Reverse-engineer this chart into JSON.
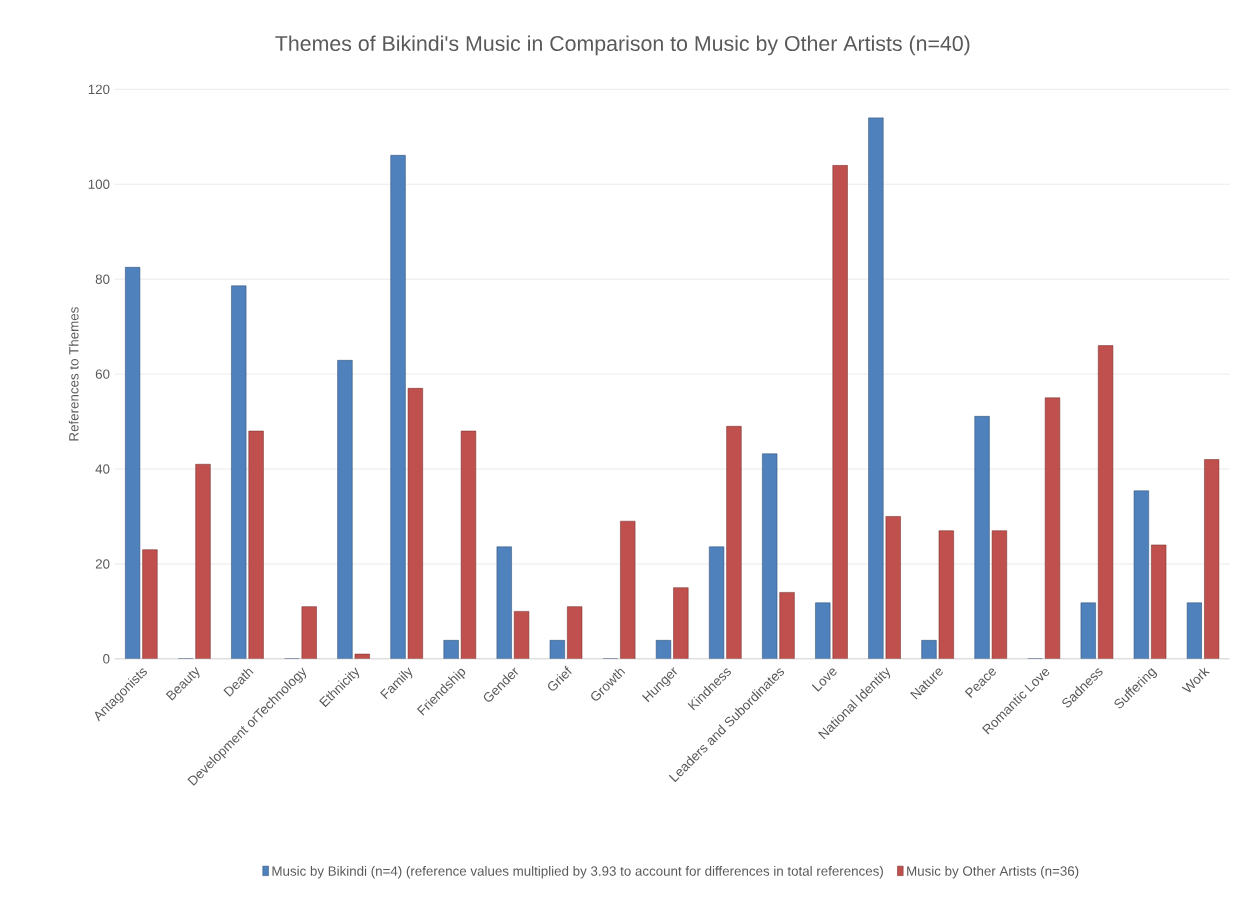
{
  "chart_data": {
    "type": "bar",
    "title": "Themes of Bikindi's Music in Comparison to Music by Other Artists (n=40)",
    "ylabel": "References to Themes",
    "categories": [
      "Antagonists",
      "Beauty",
      "Death",
      "Development orTechnology",
      "Ethnicity",
      "Family",
      "Friendship",
      "Gender",
      "Grief",
      "Growth",
      "Hunger",
      "Kindness",
      "Leaders and Subordinates",
      "Love",
      "National Identity",
      "Nature",
      "Peace",
      "Romantic Love",
      "Sadness",
      "Suffering",
      "Work"
    ],
    "series": [
      {
        "name": "Music by Bikindi (n=4) (reference values multiplied by 3.93 to account for differences in total references)",
        "color": "#4f81bd",
        "values": [
          82.5,
          0,
          78.6,
          0,
          62.9,
          106.1,
          3.9,
          23.6,
          3.9,
          0,
          3.9,
          23.6,
          43.2,
          11.8,
          114,
          3.9,
          51.1,
          0,
          11.8,
          35.4,
          11.8
        ]
      },
      {
        "name": "Music by Other Artists (n=36)",
        "color": "#c0504d",
        "values": [
          23,
          41,
          48,
          11,
          1,
          57,
          48,
          10,
          11,
          29,
          15,
          49,
          14,
          104,
          30,
          27,
          27,
          55,
          66,
          24,
          42
        ]
      }
    ],
    "ylim": [
      0,
      120
    ],
    "yticks": [
      0,
      20,
      40,
      60,
      80,
      100,
      120
    ],
    "grid": "y",
    "legend": "bottom"
  }
}
